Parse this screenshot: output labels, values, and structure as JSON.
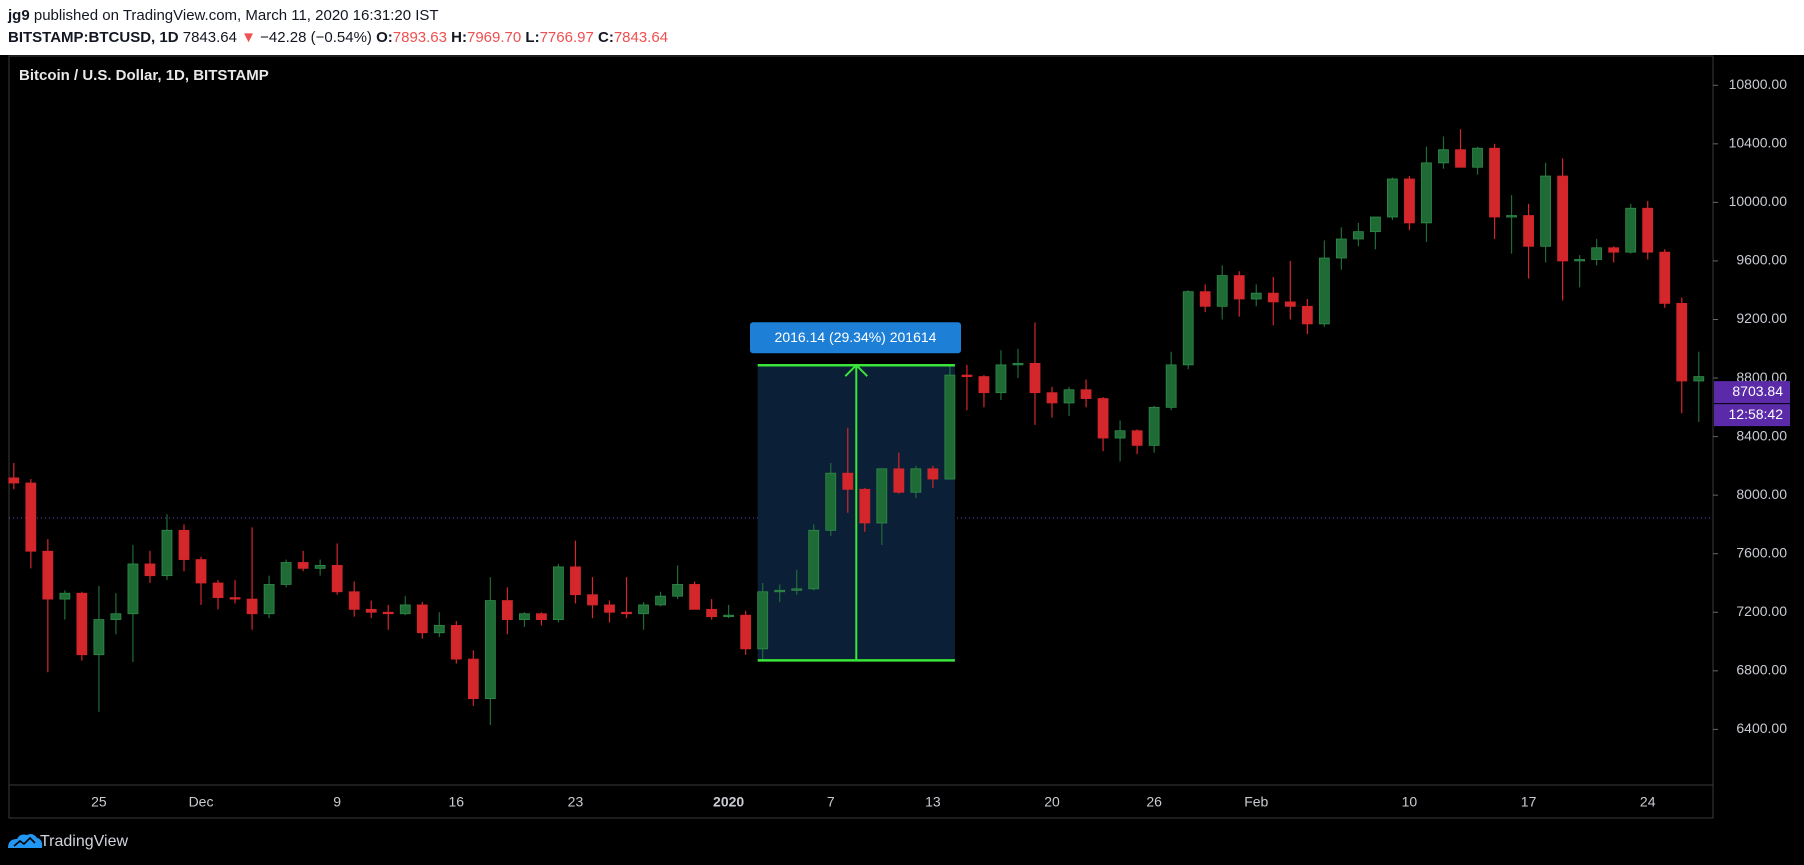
{
  "header": {
    "author": "jg9",
    "published": "published on TradingView.com, March 11, 2020 16:31:20 IST",
    "symbol": "BITSTAMP:BTCUSD, 1D",
    "last": 7843.64,
    "arrow": "▼",
    "change": "−42.28 (−0.54%)",
    "ohlc": [
      {
        "key": "O:",
        "value": "7893.63"
      },
      {
        "key": "H:",
        "value": "7969.70"
      },
      {
        "key": "L:",
        "value": "7766.97"
      },
      {
        "key": "C:",
        "value": "7843.64"
      }
    ]
  },
  "chart_data": {
    "type": "candlestick",
    "legend": "Bitcoin / U.S. Dollar, 1D, BITSTAMP",
    "categories": [
      null,
      null,
      null,
      null,
      null,
      "25",
      null,
      null,
      null,
      null,
      null,
      "Dec",
      null,
      null,
      null,
      null,
      null,
      null,
      null,
      "9",
      null,
      null,
      null,
      null,
      null,
      null,
      "16",
      null,
      null,
      null,
      null,
      null,
      null,
      "23",
      null,
      null,
      null,
      null,
      null,
      null,
      null,
      null,
      "2020",
      null,
      null,
      null,
      null,
      null,
      "7",
      null,
      null,
      null,
      null,
      null,
      "13",
      null,
      null,
      null,
      null,
      null,
      null,
      "20",
      null,
      null,
      null,
      null,
      null,
      "26",
      null,
      null,
      null,
      null,
      null,
      "Feb",
      null,
      null,
      null,
      null,
      null,
      null,
      null,
      null,
      "10",
      null,
      null,
      null,
      null,
      null,
      null,
      "17",
      null,
      null,
      null,
      null,
      null,
      null,
      "24",
      null,
      null,
      null
    ],
    "ohlc": {
      "open": [
        8118,
        8083,
        7617,
        7290,
        7330,
        6910,
        7150,
        7190,
        7530,
        7450,
        7760,
        7560,
        7400,
        7300,
        7290,
        7190,
        7390,
        7540,
        7500,
        7520,
        7340,
        7220,
        7200,
        7190,
        7250,
        7060,
        7110,
        6880,
        6610,
        7280,
        7150,
        7190,
        7150,
        7510,
        7320,
        7250,
        7200,
        7190,
        7250,
        7310,
        7390,
        7220,
        7170,
        7180,
        6950,
        7340,
        7350,
        7360,
        7760,
        8150,
        8040,
        7810,
        8180,
        8020,
        8180,
        8110,
        8820,
        8810,
        8700,
        8890,
        8900,
        8700,
        8630,
        8720,
        8660,
        8390,
        8440,
        8340,
        8600,
        8890,
        9390,
        9290,
        9500,
        9340,
        9380,
        9320,
        9290,
        9170,
        9620,
        9750,
        9800,
        9900,
        10160,
        9860,
        10270,
        10360,
        10240,
        10370,
        9900,
        9910,
        9700,
        10180,
        9600,
        9610,
        9690,
        9660,
        9960,
        9660,
        9310,
        8780
      ],
      "high": [
        8220,
        8110,
        7700,
        7350,
        7340,
        7380,
        7330,
        7660,
        7620,
        7870,
        7800,
        7580,
        7420,
        7420,
        7780,
        7450,
        7560,
        7620,
        7560,
        7670,
        7410,
        7280,
        7250,
        7310,
        7270,
        7200,
        7140,
        6940,
        7440,
        7370,
        7200,
        7200,
        7530,
        7690,
        7440,
        7280,
        7440,
        7270,
        7340,
        7520,
        7410,
        7290,
        7250,
        7210,
        7400,
        7390,
        7490,
        7800,
        8220,
        8460,
        8050,
        8180,
        8290,
        8200,
        8200,
        8880,
        8890,
        8820,
        8990,
        9000,
        9180,
        8740,
        8740,
        8790,
        8670,
        8510,
        8450,
        8610,
        8980,
        9400,
        9440,
        9570,
        9530,
        9440,
        9490,
        9600,
        9340,
        9740,
        9830,
        9860,
        9900,
        10170,
        10180,
        10380,
        10450,
        10500,
        10380,
        10400,
        10050,
        9990,
        10270,
        10300,
        9640,
        9750,
        9700,
        9990,
        10010,
        9680,
        9350,
        8980
      ],
      "low": [
        8040,
        7500,
        6790,
        7150,
        6870,
        6520,
        7050,
        6860,
        7400,
        7420,
        7480,
        7250,
        7220,
        7260,
        7080,
        7160,
        7370,
        7480,
        7450,
        7320,
        7170,
        7160,
        7080,
        7180,
        7020,
        7030,
        6850,
        6560,
        6430,
        7050,
        7100,
        7110,
        7130,
        7260,
        7160,
        7130,
        7160,
        7080,
        7240,
        7290,
        7230,
        7150,
        7160,
        6910,
        6870,
        7270,
        7320,
        7350,
        7720,
        7880,
        7750,
        7660,
        8010,
        7980,
        8050,
        8110,
        8580,
        8600,
        8650,
        8800,
        8480,
        8530,
        8540,
        8600,
        8300,
        8230,
        8280,
        8290,
        8580,
        8860,
        9250,
        9200,
        9220,
        9290,
        9160,
        9200,
        9100,
        9150,
        9540,
        9700,
        9680,
        9880,
        9810,
        9730,
        10230,
        10250,
        10190,
        9750,
        9650,
        9480,
        9590,
        9330,
        9420,
        9570,
        9590,
        9650,
        9610,
        9280,
        8560,
        8500
      ],
      "close": [
        8083,
        7617,
        7290,
        7330,
        6910,
        7150,
        7190,
        7530,
        7450,
        7760,
        7560,
        7400,
        7300,
        7290,
        7190,
        7390,
        7540,
        7500,
        7520,
        7340,
        7220,
        7200,
        7190,
        7250,
        7060,
        7110,
        6880,
        6610,
        7280,
        7150,
        7190,
        7150,
        7510,
        7320,
        7250,
        7200,
        7190,
        7250,
        7310,
        7390,
        7220,
        7170,
        7180,
        6950,
        7340,
        7350,
        7360,
        7760,
        8150,
        8040,
        7810,
        8180,
        8020,
        8180,
        8110,
        8820,
        8810,
        8700,
        8890,
        8900,
        8700,
        8630,
        8720,
        8660,
        8390,
        8440,
        8340,
        8600,
        8890,
        9390,
        9290,
        9500,
        9340,
        9380,
        9320,
        9290,
        9170,
        9620,
        9750,
        9800,
        9900,
        10160,
        9860,
        10270,
        10360,
        10240,
        10370,
        9900,
        9910,
        9700,
        10180,
        9600,
        9610,
        9690,
        9660,
        9960,
        9660,
        9310,
        8780,
        8810
      ]
    },
    "up_color": "#1f6b36",
    "down_color": "#d3272c",
    "ylim": [
      6020,
      11000
    ],
    "yticks": [
      {
        "value": 6400,
        "label": "6400.00"
      },
      {
        "value": 6800,
        "label": "6800.00"
      },
      {
        "value": 7200,
        "label": "7200.00"
      },
      {
        "value": 7600,
        "label": "7600.00"
      },
      {
        "value": 8000,
        "label": "8000.00"
      },
      {
        "value": 8400,
        "label": "8400.00"
      },
      {
        "value": 8800,
        "label": "8800.00"
      },
      {
        "value": 9200,
        "label": "9200.00"
      },
      {
        "value": 9600,
        "label": "9600.00"
      },
      {
        "value": 10000,
        "label": "10000.00"
      },
      {
        "value": 10400,
        "label": "10400.00"
      },
      {
        "value": 10800,
        "label": "10800.00"
      }
    ],
    "grid": false,
    "measure": {
      "label": "2016.14 (29.34%) 201614",
      "low": 6871.6,
      "high": 8887.74,
      "color": "#39e639"
    },
    "price_tag": {
      "value": 8703.84,
      "countdown": "12:58:42",
      "color": "#5a2aa8"
    }
  },
  "footer": {
    "brand": "TradingView"
  }
}
